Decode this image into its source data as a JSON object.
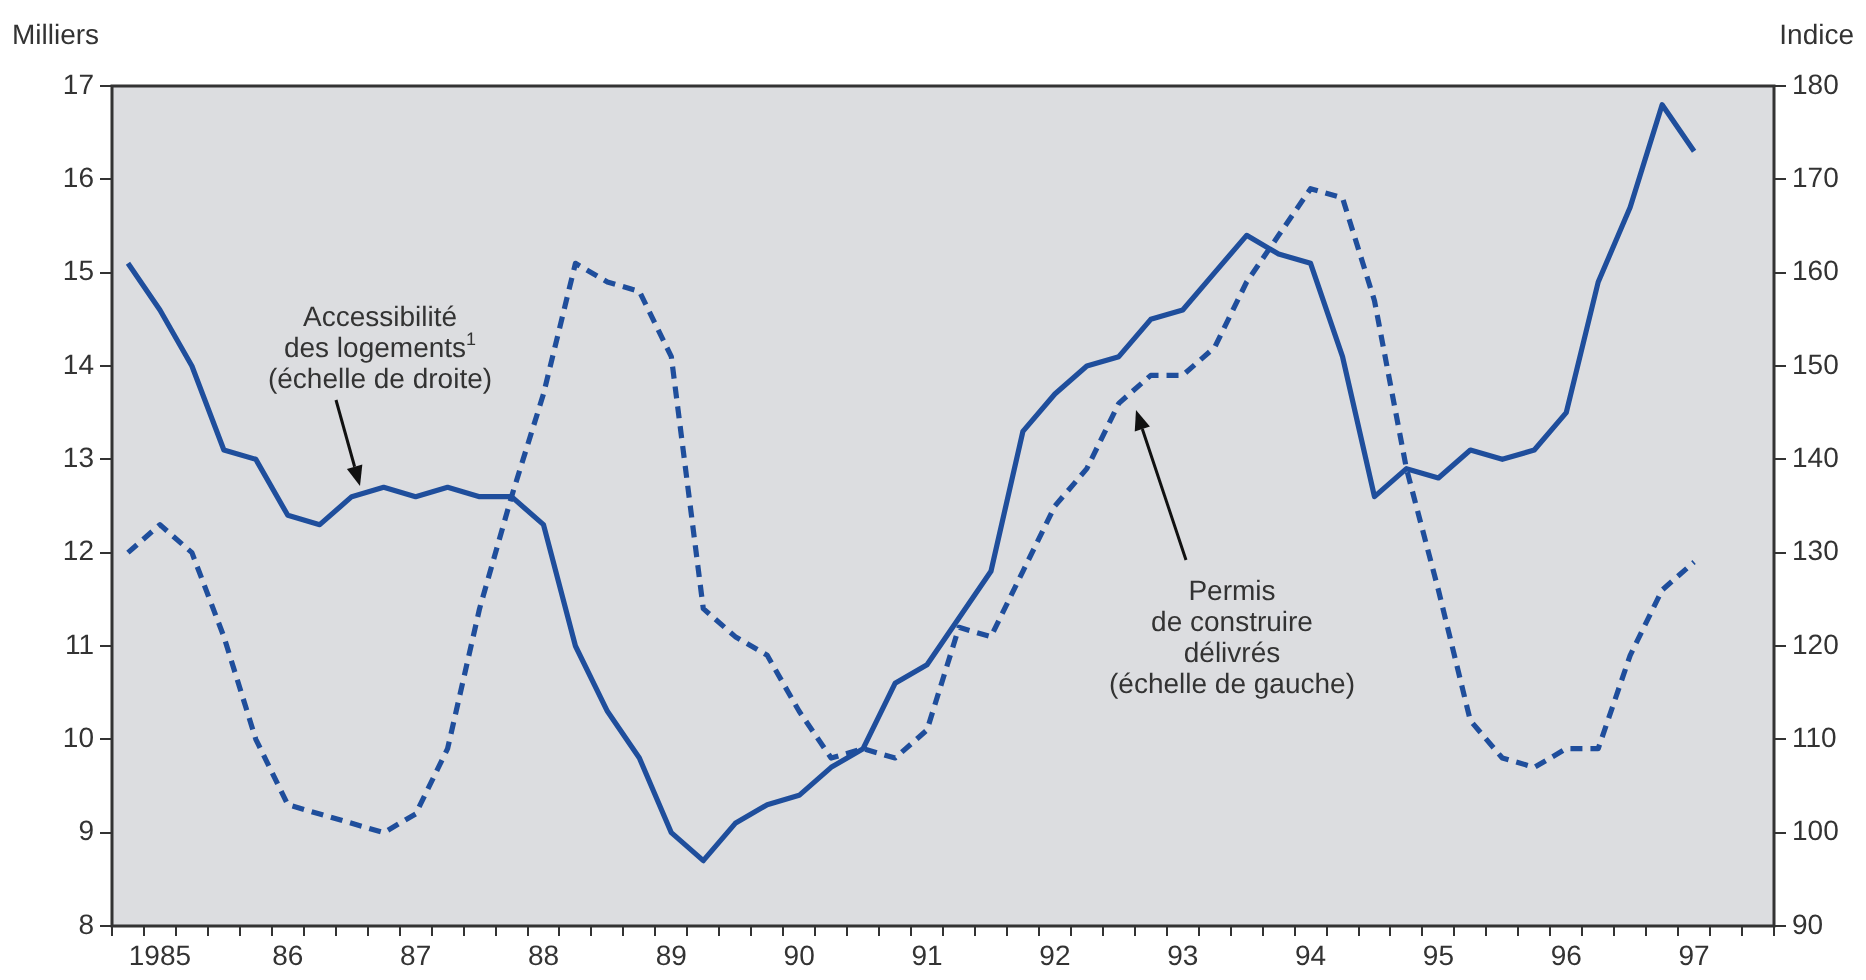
{
  "chart_data": {
    "type": "line",
    "ylabel": "Milliers",
    "y2label": "Indice",
    "categories": [
      null,
      "1985",
      null,
      null,
      null,
      "86",
      null,
      null,
      null,
      "87",
      null,
      null,
      null,
      "88",
      null,
      null,
      null,
      "89",
      null,
      null,
      null,
      "90",
      null,
      null,
      null,
      "91",
      null,
      null,
      null,
      "92",
      null,
      null,
      null,
      "93",
      null,
      null,
      null,
      "94",
      null,
      null,
      null,
      "95",
      null,
      null,
      null,
      "96",
      null,
      null,
      null,
      "97",
      null,
      null
    ],
    "series": [
      {
        "color": "#1f4e9c",
        "axis": "y2",
        "line_style": "solid",
        "values": [
          161,
          156,
          150,
          141,
          140,
          134,
          133,
          136,
          137,
          136,
          137,
          136,
          136,
          133,
          120,
          113,
          108,
          100,
          97,
          101,
          103,
          104,
          107,
          109,
          116,
          118,
          123,
          128,
          143,
          147,
          150,
          151,
          155,
          156,
          160,
          164,
          162,
          161,
          151,
          136,
          139,
          138,
          141,
          140,
          141,
          145,
          159,
          167,
          178,
          173,
          null,
          null
        ]
      },
      {
        "color": "#1f4e9c",
        "axis": "y",
        "line_style": "dashed",
        "values": [
          12.0,
          12.3,
          12.0,
          11.1,
          10.0,
          9.3,
          9.2,
          9.1,
          9.0,
          9.2,
          9.9,
          11.4,
          12.6,
          13.7,
          15.1,
          14.9,
          14.8,
          14.1,
          11.4,
          11.1,
          10.9,
          10.3,
          9.8,
          9.9,
          9.8,
          10.1,
          11.2,
          11.1,
          11.8,
          12.5,
          12.9,
          13.6,
          13.9,
          13.9,
          14.2,
          14.9,
          15.4,
          15.9,
          15.8,
          14.7,
          12.9,
          11.6,
          10.2,
          9.8,
          9.7,
          9.9,
          9.9,
          10.9,
          11.6,
          11.9,
          null,
          null
        ]
      }
    ],
    "ylim": [
      8,
      17
    ],
    "yticks": [
      8,
      9,
      10,
      11,
      12,
      13,
      14,
      15,
      16,
      17
    ],
    "y2lim": [
      90,
      180
    ],
    "y2ticks": [
      90,
      100,
      110,
      120,
      130,
      140,
      150,
      160,
      170,
      180
    ],
    "grid": false,
    "legend": false,
    "marker": "none",
    "annotations": [
      "Accessibilité\ndes logements$^{1}$\n(échelle de droite)",
      "Permis\nde construire\ndélivrés\n(échelle de gauche)"
    ]
  }
}
